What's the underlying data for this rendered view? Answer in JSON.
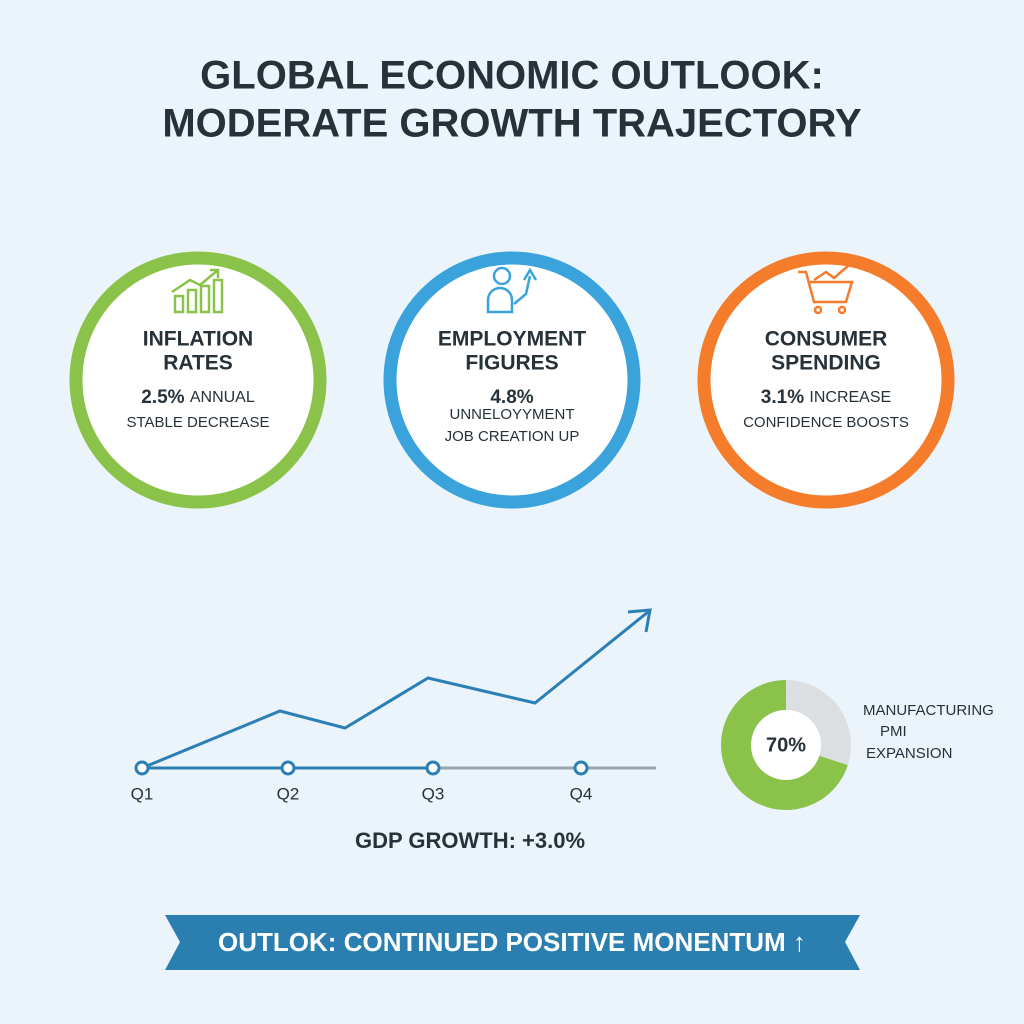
{
  "header": {
    "title_lines": [
      "GLOBAL ECONOMIC OUTLOOK:",
      "MODERATE GROWTH TRAJECTORY"
    ]
  },
  "cards": [
    {
      "title_lines": [
        "INFLATION",
        "RATES"
      ],
      "stat": "2.5%",
      "stat_note": "ANNUAL",
      "sub_lines": [
        "STABLE DECREASE"
      ]
    },
    {
      "title_lines": [
        "EMPLOYMENT",
        "FIGURES"
      ],
      "stat": "4.8%",
      "stat_note": "",
      "sub_lines": [
        "UNNELOYYMENT",
        "JOB CREATION UP"
      ]
    },
    {
      "title_lines": [
        "CONSUMER",
        "SPENDING"
      ],
      "stat": "3.1%",
      "stat_note": "INCREASE",
      "sub_lines": [
        "CONFIDENCE BOOSTS"
      ]
    }
  ],
  "growth_chart": {
    "categories": [
      "Q1",
      "Q2",
      "Q3",
      "Q4"
    ],
    "caption": "GDP GROWTH: +3.0%"
  },
  "gauge": {
    "value": 70,
    "value_label": "70%",
    "max": 100,
    "label_lines": [
      "MANUFACTURING",
      "PMI",
      "EXPANSION"
    ]
  },
  "banner": {
    "text": "OUTLOK: CONTINUED POSITIVE MONENTUM ↑"
  }
}
